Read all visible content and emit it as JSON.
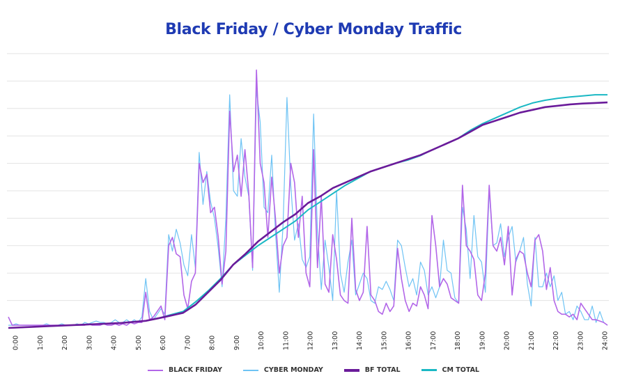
{
  "chart_data": {
    "type": "line",
    "title": "Black Friday / Cyber Monday Traffic",
    "xlabel": "",
    "ylabel": "",
    "xlim": [
      0,
      24
    ],
    "ylim": [
      0,
      10
    ],
    "grid": true,
    "legend_position": "bottom-center",
    "x_tick_labels": [
      "0:00",
      "1:00",
      "2:00",
      "3:00",
      "4:00",
      "5:00",
      "6:00",
      "7:00",
      "8:00",
      "9:00",
      "10:00",
      "11:00",
      "12:00",
      "13:00",
      "14:00",
      "15:00",
      "16:00",
      "17:00",
      "18:00",
      "19:00",
      "20:00",
      "21:00",
      "22:00",
      "23:00",
      "24:00"
    ],
    "x_step_hours_traffic": 0.1667,
    "x_step_hours_totals": 0.5,
    "series": [
      {
        "name": "BLACK FRIDAY",
        "color": "#b266e8",
        "values": [
          0.4,
          0.1,
          0.1,
          0.1,
          0.1,
          0.1,
          0.1,
          0.1,
          0.1,
          0.1,
          0.1,
          0.1,
          0.1,
          0.1,
          0.1,
          0.1,
          0.1,
          0.1,
          0.1,
          0.1,
          0.1,
          0.15,
          0.1,
          0.1,
          0.1,
          0.15,
          0.1,
          0.1,
          0.15,
          0.1,
          0.15,
          0.1,
          0.2,
          0.15,
          0.2,
          0.2,
          1.3,
          0.3,
          0.4,
          0.6,
          0.8,
          0.3,
          3.0,
          3.3,
          2.7,
          2.6,
          1.2,
          0.7,
          1.7,
          2.0,
          6.0,
          5.3,
          5.6,
          4.2,
          4.4,
          3.3,
          1.6,
          2.8,
          7.9,
          5.7,
          6.3,
          4.8,
          6.5,
          4.9,
          2.2,
          9.4,
          6.0,
          5.3,
          3.3,
          5.5,
          4.0,
          2.0,
          3.0,
          3.3,
          6.0,
          5.3,
          3.3,
          4.8,
          2.0,
          1.5,
          6.5,
          2.2,
          4.8,
          1.6,
          1.3,
          3.4,
          2.5,
          1.2,
          1.0,
          0.9,
          4.0,
          1.4,
          1.0,
          1.3,
          3.7,
          1.2,
          1.0,
          0.6,
          0.5,
          0.9,
          0.6,
          0.8,
          2.9,
          1.8,
          1.0,
          0.6,
          0.9,
          0.8,
          1.5,
          1.2,
          0.7,
          4.1,
          3.0,
          1.5,
          1.8,
          1.6,
          1.1,
          1.0,
          0.9,
          5.2,
          3.0,
          2.8,
          2.5,
          1.2,
          1.0,
          2.0,
          5.2,
          3.0,
          2.8,
          3.3,
          2.3,
          3.7,
          1.2,
          2.5,
          2.8,
          2.7,
          2.0,
          1.5,
          3.2,
          3.4,
          2.8,
          1.4,
          2.2,
          1.0,
          0.6,
          0.5,
          0.5,
          0.4,
          0.5,
          0.3,
          0.9,
          0.7,
          0.5,
          0.3,
          0.3,
          0.25,
          0.2,
          0.1
        ]
      },
      {
        "name": "CYBER MONDAY",
        "color": "#6ec3f4",
        "values": [
          0.1,
          0.1,
          0.15,
          0.1,
          0.1,
          0.1,
          0.1,
          0.1,
          0.1,
          0.1,
          0.15,
          0.1,
          0.1,
          0.1,
          0.15,
          0.1,
          0.1,
          0.1,
          0.15,
          0.1,
          0.2,
          0.15,
          0.2,
          0.25,
          0.2,
          0.2,
          0.15,
          0.2,
          0.3,
          0.2,
          0.2,
          0.3,
          0.2,
          0.3,
          0.2,
          0.4,
          1.8,
          0.6,
          0.3,
          0.5,
          0.7,
          0.5,
          3.4,
          2.8,
          3.6,
          3.1,
          2.3,
          1.9,
          3.4,
          2.2,
          6.4,
          4.5,
          5.7,
          4.6,
          4.0,
          2.9,
          1.5,
          4.0,
          8.5,
          5.0,
          4.8,
          6.9,
          5.5,
          4.8,
          2.1,
          8.7,
          7.5,
          4.4,
          4.2,
          6.3,
          3.5,
          1.3,
          3.8,
          8.4,
          5.2,
          3.2,
          3.8,
          2.5,
          2.2,
          2.6,
          7.8,
          3.5,
          1.4,
          3.2,
          2.2,
          1.0,
          5.0,
          2.0,
          1.3,
          2.4,
          3.2,
          1.2,
          1.6,
          2.0,
          1.8,
          1.0,
          0.9,
          1.5,
          1.4,
          1.7,
          1.4,
          1.0,
          3.2,
          3.0,
          2.2,
          1.5,
          1.8,
          1.2,
          2.4,
          2.1,
          1.2,
          1.5,
          1.1,
          1.5,
          3.2,
          2.1,
          2.0,
          1.1,
          0.9,
          4.4,
          3.6,
          1.8,
          4.1,
          2.6,
          2.4,
          1.3,
          5.0,
          3.0,
          3.1,
          3.8,
          2.6,
          3.3,
          3.7,
          2.4,
          2.8,
          3.3,
          1.6,
          0.8,
          3.3,
          1.5,
          1.5,
          2.0,
          1.5,
          1.9,
          1.0,
          1.3,
          0.5,
          0.6,
          0.3,
          0.8,
          0.6,
          0.3,
          0.3,
          0.8,
          0.2,
          0.6,
          0.2,
          0.1
        ]
      },
      {
        "name": "BF TOTAL",
        "color": "#6a1b9a",
        "values": [
          0.0,
          0.02,
          0.04,
          0.06,
          0.08,
          0.1,
          0.12,
          0.14,
          0.16,
          0.18,
          0.22,
          0.26,
          0.35,
          0.45,
          0.55,
          0.85,
          1.3,
          1.75,
          2.3,
          2.7,
          3.15,
          3.5,
          3.85,
          4.15,
          4.55,
          4.8,
          5.1,
          5.3,
          5.5,
          5.7,
          5.85,
          6.0,
          6.15,
          6.3,
          6.5,
          6.7,
          6.9,
          7.15,
          7.4,
          7.55,
          7.7,
          7.85,
          7.95,
          8.05,
          8.1,
          8.15,
          8.18,
          8.2,
          8.22
        ]
      },
      {
        "name": "CM TOTAL",
        "color": "#1ab8c4",
        "values": [
          0.0,
          0.02,
          0.04,
          0.06,
          0.08,
          0.1,
          0.12,
          0.14,
          0.16,
          0.18,
          0.22,
          0.26,
          0.35,
          0.48,
          0.6,
          0.95,
          1.35,
          1.8,
          2.3,
          2.65,
          3.0,
          3.3,
          3.6,
          3.9,
          4.3,
          4.6,
          4.9,
          5.2,
          5.45,
          5.7,
          5.85,
          6.0,
          6.12,
          6.28,
          6.5,
          6.7,
          6.9,
          7.2,
          7.45,
          7.65,
          7.85,
          8.05,
          8.2,
          8.3,
          8.37,
          8.42,
          8.46,
          8.5,
          8.5
        ]
      }
    ]
  }
}
